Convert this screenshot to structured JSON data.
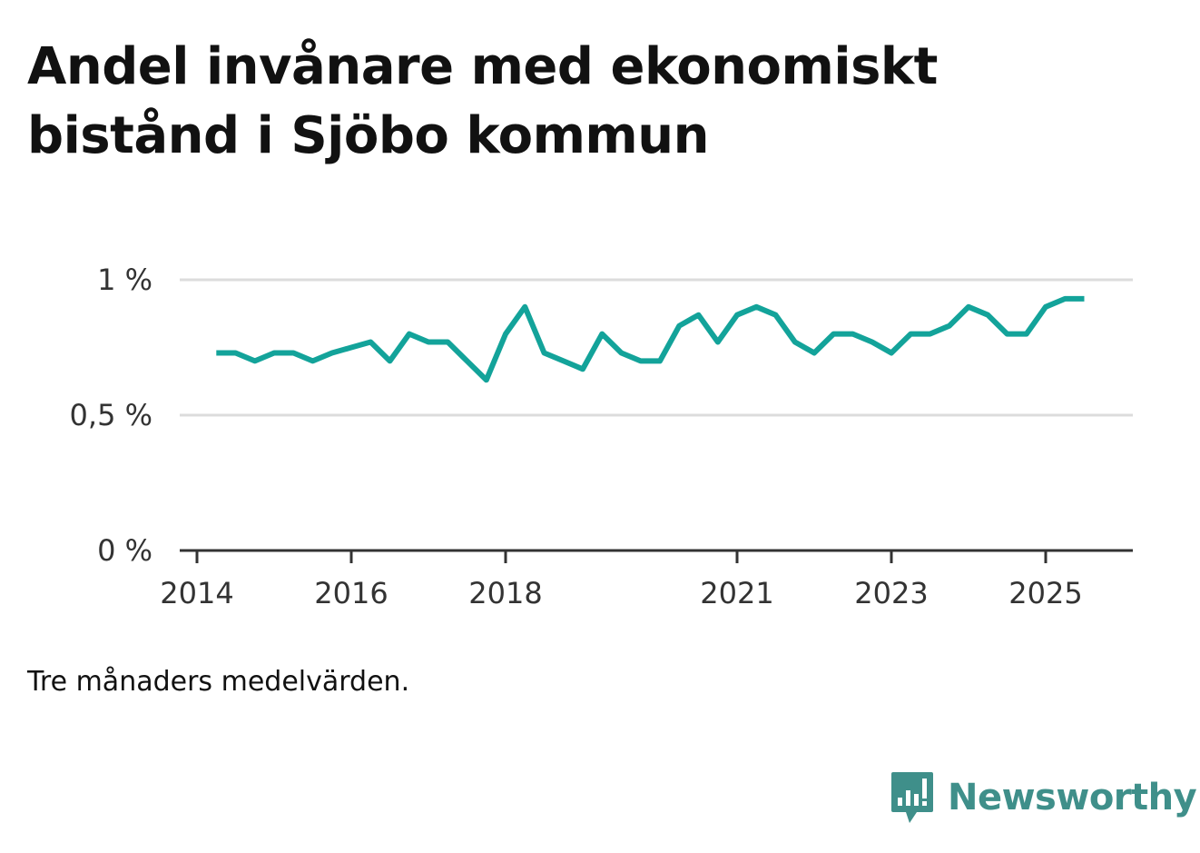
{
  "title": "Andel invånare med ekonomiskt bistånd i Sjöbo kommun",
  "footnote": "Tre månaders medelvärden.",
  "brand": {
    "name": "Newsworthy",
    "icon": "newsworthy-logo-icon",
    "color": "#3f8f8a"
  },
  "chart_data": {
    "type": "line",
    "title": "Andel invånare med ekonomiskt bistånd i Sjöbo kommun",
    "xlabel": "",
    "ylabel": "",
    "x_ticks": [
      "2014",
      "2016",
      "2018",
      "2021",
      "2023",
      "2025"
    ],
    "y_ticks": [
      {
        "value": 0,
        "label": "0 %"
      },
      {
        "value": 0.5,
        "label": "0,5 %"
      },
      {
        "value": 1,
        "label": "1 %"
      }
    ],
    "xlim": [
      2014.0,
      2026.2
    ],
    "ylim": [
      0,
      1
    ],
    "grid": true,
    "line_color": "#13a39a",
    "series": [
      {
        "name": "Andel invånare med ekonomiskt bistånd",
        "x": [
          2014.25,
          2014.5,
          2014.75,
          2015.0,
          2015.25,
          2015.5,
          2015.75,
          2016.0,
          2016.25,
          2016.5,
          2016.75,
          2017.0,
          2017.25,
          2017.5,
          2017.75,
          2018.0,
          2018.25,
          2018.5,
          2018.75,
          2019.0,
          2019.25,
          2019.5,
          2019.75,
          2020.0,
          2020.25,
          2020.5,
          2020.75,
          2021.0,
          2021.25,
          2021.5,
          2021.75,
          2022.0,
          2022.25,
          2022.5,
          2022.75,
          2023.0,
          2023.25,
          2023.5,
          2023.75,
          2024.0,
          2024.25,
          2024.5,
          2024.75,
          2025.0,
          2025.25,
          2025.5
        ],
        "values": [
          0.73,
          0.73,
          0.7,
          0.73,
          0.73,
          0.7,
          0.73,
          0.75,
          0.77,
          0.7,
          0.8,
          0.77,
          0.77,
          0.7,
          0.63,
          0.8,
          0.9,
          0.73,
          0.7,
          0.67,
          0.8,
          0.73,
          0.7,
          0.7,
          0.83,
          0.87,
          0.77,
          0.87,
          0.9,
          0.87,
          0.77,
          0.73,
          0.8,
          0.8,
          0.77,
          0.73,
          0.8,
          0.8,
          0.83,
          0.9,
          0.87,
          0.8,
          0.8,
          0.9,
          0.93,
          0.93
        ]
      }
    ]
  }
}
